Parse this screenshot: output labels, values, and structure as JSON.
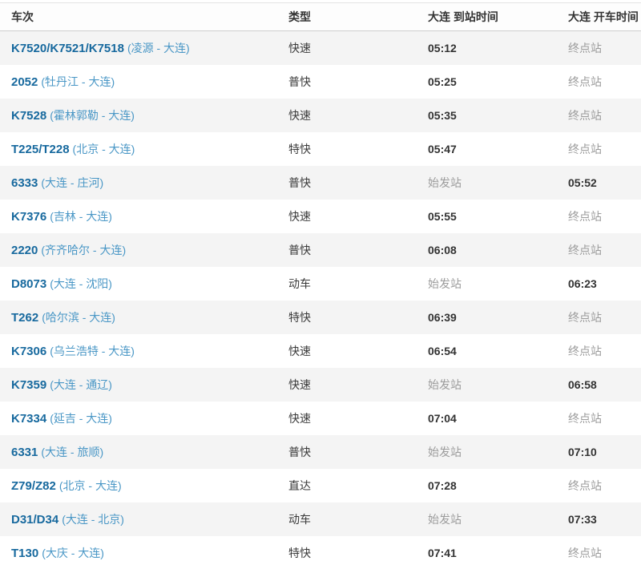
{
  "station": "大连",
  "colors": {
    "train_number_link": "#17699e",
    "route_link": "#4a97c6",
    "time_text": "#333333",
    "muted_station_text": "#9c9c9c",
    "alt_row_background": "#f4f4f4",
    "header_text": "#333333"
  },
  "table": {
    "columns": [
      {
        "label": "车次"
      },
      {
        "label": "类型"
      },
      {
        "label": "大连  到站时间"
      },
      {
        "label": "大连  开车时间"
      }
    ],
    "rows": [
      {
        "train": "K7520/K7521/K7518",
        "route": "(凌源 - 大连)",
        "type": "快速",
        "arrival": "05:12",
        "departure": "终点站",
        "arrival_is_station": false,
        "departure_is_station": true
      },
      {
        "train": "2052",
        "route": "(牡丹江 - 大连)",
        "type": "普快",
        "arrival": "05:25",
        "departure": "终点站",
        "arrival_is_station": false,
        "departure_is_station": true
      },
      {
        "train": "K7528",
        "route": "(霍林郭勒 - 大连)",
        "type": "快速",
        "arrival": "05:35",
        "departure": "终点站",
        "arrival_is_station": false,
        "departure_is_station": true
      },
      {
        "train": "T225/T228",
        "route": "(北京 - 大连)",
        "type": "特快",
        "arrival": "05:47",
        "departure": "终点站",
        "arrival_is_station": false,
        "departure_is_station": true
      },
      {
        "train": "6333",
        "route": "(大连 - 庄河)",
        "type": "普快",
        "arrival": "始发站",
        "departure": "05:52",
        "arrival_is_station": true,
        "departure_is_station": false
      },
      {
        "train": "K7376",
        "route": "(吉林 - 大连)",
        "type": "快速",
        "arrival": "05:55",
        "departure": "终点站",
        "arrival_is_station": false,
        "departure_is_station": true
      },
      {
        "train": "2220",
        "route": "(齐齐哈尔 - 大连)",
        "type": "普快",
        "arrival": "06:08",
        "departure": "终点站",
        "arrival_is_station": false,
        "departure_is_station": true
      },
      {
        "train": "D8073",
        "route": "(大连 - 沈阳)",
        "type": "动车",
        "arrival": "始发站",
        "departure": "06:23",
        "arrival_is_station": true,
        "departure_is_station": false
      },
      {
        "train": "T262",
        "route": "(哈尔滨 - 大连)",
        "type": "特快",
        "arrival": "06:39",
        "departure": "终点站",
        "arrival_is_station": false,
        "departure_is_station": true
      },
      {
        "train": "K7306",
        "route": "(乌兰浩特 - 大连)",
        "type": "快速",
        "arrival": "06:54",
        "departure": "终点站",
        "arrival_is_station": false,
        "departure_is_station": true
      },
      {
        "train": "K7359",
        "route": "(大连 - 通辽)",
        "type": "快速",
        "arrival": "始发站",
        "departure": "06:58",
        "arrival_is_station": true,
        "departure_is_station": false
      },
      {
        "train": "K7334",
        "route": "(延吉 - 大连)",
        "type": "快速",
        "arrival": "07:04",
        "departure": "终点站",
        "arrival_is_station": false,
        "departure_is_station": true
      },
      {
        "train": "6331",
        "route": "(大连 - 旅顺)",
        "type": "普快",
        "arrival": "始发站",
        "departure": "07:10",
        "arrival_is_station": true,
        "departure_is_station": false
      },
      {
        "train": "Z79/Z82",
        "route": "(北京 - 大连)",
        "type": "直达",
        "arrival": "07:28",
        "departure": "终点站",
        "arrival_is_station": false,
        "departure_is_station": true
      },
      {
        "train": "D31/D34",
        "route": "(大连 - 北京)",
        "type": "动车",
        "arrival": "始发站",
        "departure": "07:33",
        "arrival_is_station": true,
        "departure_is_station": false
      },
      {
        "train": "T130",
        "route": "(大庆 - 大连)",
        "type": "特快",
        "arrival": "07:41",
        "departure": "终点站",
        "arrival_is_station": false,
        "departure_is_station": true
      }
    ]
  }
}
